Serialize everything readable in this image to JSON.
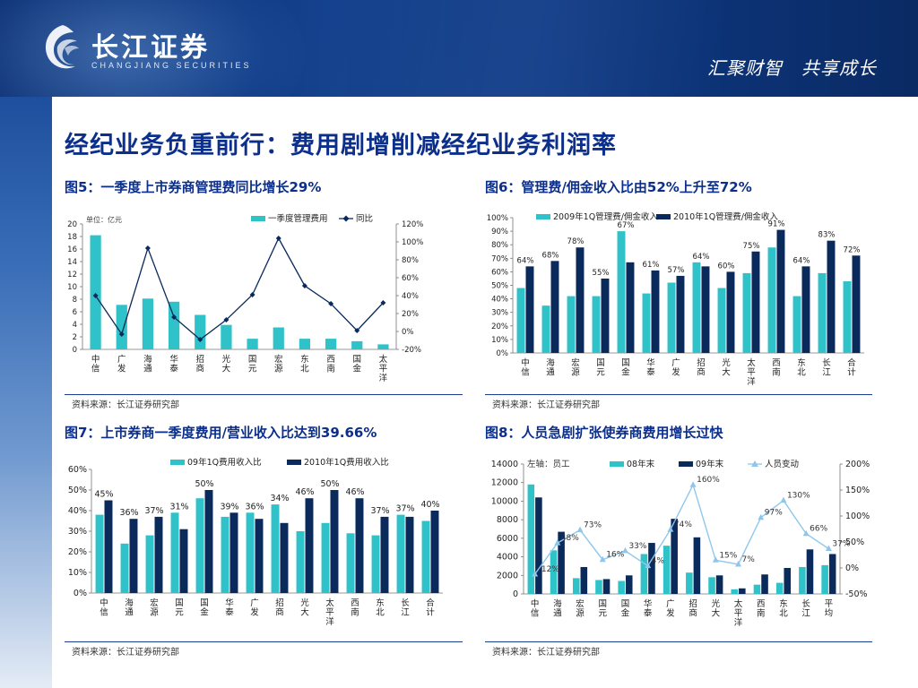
{
  "header": {
    "logo_name": "长江证券",
    "logo_sub": "CHANGJIANG SECURITIES",
    "slogan": "汇聚财智　共享成长"
  },
  "page_title": "经纪业务负重前行：费用剧增削减经纪业务利润率",
  "colors": {
    "bar_teal": "#2fc3c9",
    "bar_navy": "#0b2a5c",
    "line_navy": "#0b2a5c",
    "line_light": "#8fc7ec",
    "title_blue": "#0b2f8a"
  },
  "chart_data": [
    {
      "id": "fig5",
      "type": "bar",
      "title": "图5：一季度上市券商管理费同比增长29%",
      "unit_label": "单位：亿元",
      "categories": [
        "中信",
        "广发",
        "海通",
        "华泰",
        "招商",
        "光大",
        "国元",
        "宏源",
        "东北",
        "西南",
        "国金",
        "太平洋"
      ],
      "series": [
        {
          "name": "一季度管理费用",
          "type": "bar",
          "axis": "left",
          "values": [
            18.2,
            7.1,
            8.1,
            7.6,
            5.5,
            3.9,
            1.7,
            3.5,
            1.7,
            1.7,
            1.3,
            0.8
          ]
        },
        {
          "name": "同比",
          "type": "line",
          "axis": "right",
          "values": [
            40,
            -3,
            93,
            16,
            -9,
            13,
            41,
            104,
            51,
            31,
            1,
            32
          ]
        }
      ],
      "ylim_left": [
        0,
        20
      ],
      "ytick_left": [
        0,
        2,
        4,
        6,
        8,
        10,
        12,
        14,
        16,
        18,
        20
      ],
      "ylim_right": [
        -20,
        120
      ],
      "ytick_right": [
        "-20%",
        "0%",
        "20%",
        "40%",
        "60%",
        "80%",
        "100%",
        "120%"
      ],
      "source": "资料来源：长江证券研究部"
    },
    {
      "id": "fig6",
      "type": "bar",
      "title": "图6：管理费/佣金收入比由52%上升至72%",
      "categories": [
        "中信",
        "海通",
        "宏源",
        "国元",
        "国金",
        "华泰",
        "广发",
        "招商",
        "光大",
        "太平洋",
        "西南",
        "东北",
        "长江",
        "合计"
      ],
      "series": [
        {
          "name": "2009年1Q管理费/佣金收入",
          "values": [
            48,
            35,
            42,
            42,
            90,
            44,
            52,
            67,
            48,
            59,
            78,
            42,
            59,
            53
          ]
        },
        {
          "name": "2010年1Q管理费/佣金收入",
          "values": [
            64,
            68,
            78,
            55,
            67,
            61,
            57,
            64,
            60,
            75,
            91,
            64,
            83,
            72
          ]
        }
      ],
      "data_labels": [
        "64%",
        "68%",
        "78%",
        "55%",
        "67%",
        "61%",
        "57%",
        "64%",
        "60%",
        "75%",
        "91%",
        "64%",
        "83%",
        "72%"
      ],
      "ylim": [
        0,
        100
      ],
      "yticks": [
        "0%",
        "10%",
        "20%",
        "30%",
        "40%",
        "50%",
        "60%",
        "70%",
        "80%",
        "90%",
        "100%"
      ],
      "source": "资料来源：长江证券研究部"
    },
    {
      "id": "fig7",
      "type": "bar",
      "title": "图7：上市券商一季度费用/营业收入比达到39.66%",
      "categories": [
        "中信",
        "海通",
        "宏源",
        "国元",
        "国金",
        "华泰",
        "广发",
        "招商",
        "光大",
        "太平洋",
        "西南",
        "东北",
        "长江",
        "合计"
      ],
      "series": [
        {
          "name": "09年1Q费用收入比",
          "values": [
            38,
            24,
            28,
            39,
            46,
            37,
            39,
            43,
            30,
            34,
            29,
            28,
            38,
            35
          ]
        },
        {
          "name": "2010年1Q费用收入比",
          "values": [
            45,
            36,
            37,
            31,
            50,
            39,
            36,
            34,
            46,
            50,
            46,
            37,
            37,
            40
          ]
        }
      ],
      "data_labels": [
        "45%",
        "36%",
        "37%",
        "31%",
        "50%",
        "39%",
        "36%",
        "34%",
        "46%",
        "50%",
        "46%",
        "37%",
        "37%",
        "40%"
      ],
      "ylim": [
        0,
        60
      ],
      "yticks": [
        "0%",
        "10%",
        "20%",
        "30%",
        "40%",
        "50%",
        "60%"
      ],
      "source": "资料来源：长江证券研究部"
    },
    {
      "id": "fig8",
      "type": "bar",
      "title": "图8：人员急剧扩张使券商费用增长过快",
      "axis_note": "左轴：员工",
      "categories": [
        "中信",
        "海通",
        "宏源",
        "国元",
        "国金",
        "华泰",
        "广发",
        "招商",
        "光大",
        "太平洋",
        "西南",
        "东北",
        "长江",
        "平均"
      ],
      "series": [
        {
          "name": "08年末",
          "type": "bar",
          "axis": "left",
          "values": [
            11800,
            4700,
            1700,
            1500,
            1400,
            4300,
            5200,
            2300,
            1800,
            500,
            1000,
            1200,
            2900,
            3100
          ]
        },
        {
          "name": "09年末",
          "type": "bar",
          "axis": "left",
          "values": [
            10400,
            6700,
            2900,
            1600,
            2000,
            5500,
            8100,
            6100,
            2000,
            600,
            2100,
            2800,
            4800,
            4300
          ]
        },
        {
          "name": "人员变动",
          "type": "line",
          "axis": "right",
          "values": [
            -12,
            48,
            73,
            16,
            33,
            4,
            74,
            160,
            15,
            7,
            97,
            130,
            66,
            37
          ]
        }
      ],
      "data_labels": [
        "-12%",
        "48%",
        "73%",
        "16%",
        "33%",
        "4%",
        "74%",
        "160%",
        "15%",
        "7%",
        "97%",
        "130%",
        "66%",
        "37%"
      ],
      "ylim_left": [
        0,
        14000
      ],
      "ytick_left": [
        0,
        2000,
        4000,
        6000,
        8000,
        10000,
        12000,
        14000
      ],
      "ylim_right": [
        -50,
        200
      ],
      "ytick_right": [
        "-50%",
        "0%",
        "50%",
        "100%",
        "150%",
        "200%"
      ],
      "source": "资料来源：长江证券研究部"
    }
  ]
}
